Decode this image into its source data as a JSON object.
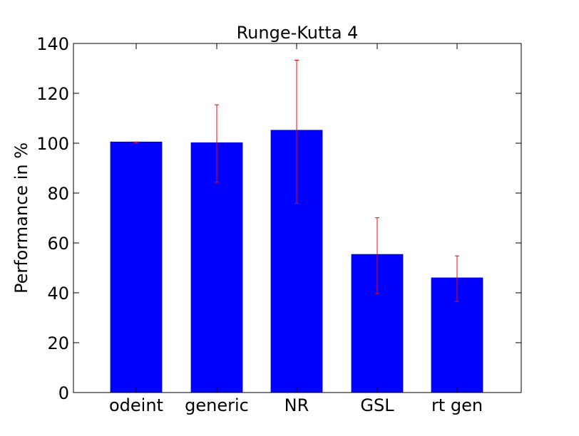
{
  "chart_data": {
    "type": "bar",
    "title": "Runge-Kutta 4",
    "xlabel": "",
    "ylabel": "Performance in %",
    "categories": [
      "odeint",
      "generic",
      "NR",
      "GSL",
      "rt gen"
    ],
    "values": [
      100.5,
      100.2,
      105.2,
      55.4,
      46.0
    ],
    "error_low": [
      100.0,
      84.3,
      75.9,
      39.7,
      36.5
    ],
    "error_high": [
      100.5,
      115.4,
      133.3,
      70.1,
      54.8
    ],
    "yticks": [
      0,
      20,
      40,
      60,
      80,
      100,
      120,
      140
    ],
    "ylim": [
      0,
      140
    ],
    "grid": false,
    "colors": {
      "bar": "#0000ff",
      "error_bar": "#ff0000"
    }
  }
}
